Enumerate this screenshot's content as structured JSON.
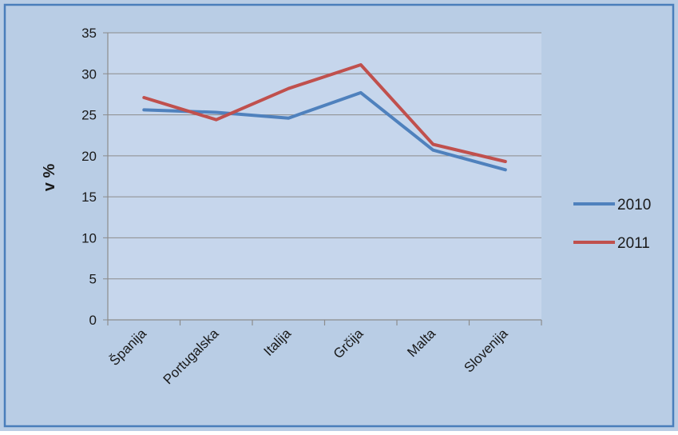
{
  "chart_data": {
    "type": "line",
    "title": "",
    "xlabel": "",
    "ylabel": "v %",
    "ylim": [
      0,
      35
    ],
    "yticks": [
      0,
      5,
      10,
      15,
      20,
      25,
      30,
      35
    ],
    "grid": true,
    "legend_position": "right",
    "categories": [
      "Španija",
      "Portugalska",
      "Italija",
      "Grčija",
      "Malta",
      "Slovenija"
    ],
    "series": [
      {
        "name": "2010",
        "color": "#4f81bd",
        "values": [
          25.6,
          25.3,
          24.6,
          27.7,
          20.7,
          18.3
        ]
      },
      {
        "name": "2011",
        "color": "#c0504d",
        "values": [
          27.1,
          24.4,
          28.2,
          31.1,
          21.4,
          19.3
        ]
      }
    ]
  },
  "colors": {
    "chart_area": "#b9cde5",
    "plot_area": "#c6d6ec",
    "border": "#4a7ebb",
    "gridline": "#8c8c8c"
  }
}
